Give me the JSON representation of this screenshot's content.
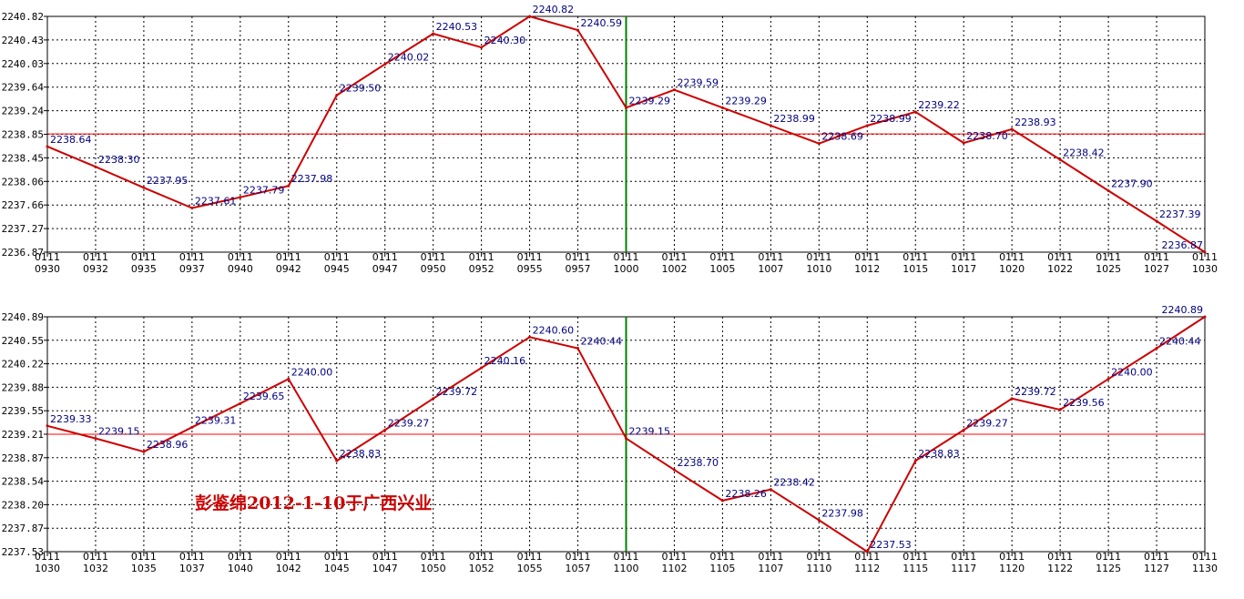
{
  "chart_data": [
    {
      "type": "line",
      "categories": [
        "0111 0930",
        "0111 0932",
        "0111 0935",
        "0111 0937",
        "0111 0940",
        "0111 0942",
        "0111 0945",
        "0111 0947",
        "0111 0950",
        "0111 0952",
        "0111 0955",
        "0111 0957",
        "0111 1000",
        "0111 1002",
        "0111 1005",
        "0111 1007",
        "0111 1010",
        "0111 1012",
        "0111 1015",
        "0111 1017",
        "0111 1020",
        "0111 1022",
        "0111 1025",
        "0111 1027",
        "0111 1030"
      ],
      "series": [
        {
          "values": [
            2238.64,
            2238.3,
            2237.95,
            2237.61,
            2237.79,
            2237.98,
            2239.5,
            2240.02,
            2240.53,
            2240.3,
            2240.82,
            2240.59,
            2239.29,
            2239.59,
            2239.29,
            2238.99,
            2238.69,
            2238.99,
            2239.22,
            2238.7,
            2238.93,
            2238.42,
            2237.9,
            2237.39,
            2236.87
          ]
        }
      ],
      "data_labels": [
        "2238.64",
        "2238.30",
        "2237.95",
        "2237.61",
        "2237.79",
        "2237.98",
        "2239.50",
        "2240.02",
        "2240.53",
        "2240.30",
        "2240.82",
        "2240.59",
        "2239.29",
        "2239.59",
        "2239.29",
        "2238.99",
        "2238.69",
        "2238.99",
        "2239.22",
        "2238.70",
        "2238.93",
        "2238.42",
        "2237.90",
        "2237.39",
        "2236.87"
      ],
      "yticks": [
        "2240.82",
        "2240.43",
        "2240.03",
        "2239.64",
        "2239.24",
        "2238.85",
        "2238.45",
        "2238.06",
        "2237.66",
        "2237.27",
        "2236.87"
      ],
      "ylim": [
        2236.87,
        2240.82
      ],
      "reference_line": 2238.85,
      "vertical_marker": "0111 1000",
      "grid": true,
      "colors": {
        "line": "#cc0000",
        "reference": "#ff0000",
        "marker": "#008000",
        "labels": "#000080",
        "grid": "#000000"
      }
    },
    {
      "type": "line",
      "categories": [
        "0111 1030",
        "0111 1032",
        "0111 1035",
        "0111 1037",
        "0111 1040",
        "0111 1042",
        "0111 1045",
        "0111 1047",
        "0111 1050",
        "0111 1052",
        "0111 1055",
        "0111 1057",
        "0111 1100",
        "0111 1102",
        "0111 1105",
        "0111 1107",
        "0111 1110",
        "0111 1112",
        "0111 1115",
        "0111 1117",
        "0111 1120",
        "0111 1122",
        "0111 1125",
        "0111 1127",
        "0111 1130"
      ],
      "series": [
        {
          "values": [
            2239.33,
            2239.15,
            2238.96,
            2239.31,
            2239.65,
            2240.0,
            2238.83,
            2239.27,
            2239.72,
            2240.16,
            2240.6,
            2240.44,
            2239.15,
            2238.7,
            2238.26,
            2238.42,
            2237.98,
            2237.53,
            2238.83,
            2239.27,
            2239.72,
            2239.56,
            2240.0,
            2240.44,
            2240.89
          ]
        }
      ],
      "data_labels": [
        "2239.33",
        "2239.15",
        "2238.96",
        "2239.31",
        "2239.65",
        "2240.00",
        "2238.83",
        "2239.27",
        "2239.72",
        "2240.16",
        "2240.60",
        "2240.44",
        "2239.15",
        "2238.70",
        "2238.26",
        "2238.42",
        "2237.98",
        "2237.53",
        "2238.83",
        "2239.27",
        "2239.72",
        "2239.56",
        "2240.00",
        "2240.44",
        "2240.89"
      ],
      "yticks": [
        "2240.89",
        "2240.55",
        "2240.22",
        "2239.88",
        "2239.55",
        "2239.21",
        "2238.87",
        "2238.54",
        "2238.20",
        "2237.87",
        "2237.53"
      ],
      "ylim": [
        2237.53,
        2240.89
      ],
      "reference_line": 2239.21,
      "vertical_marker": "0111 1100",
      "grid": true,
      "annotation": "彭鉴绵2012-1-10于广西兴业",
      "colors": {
        "line": "#cc0000",
        "reference": "#ff0000",
        "marker": "#008000",
        "labels": "#000080",
        "grid": "#000000",
        "annotation": "#cc0000"
      }
    }
  ]
}
